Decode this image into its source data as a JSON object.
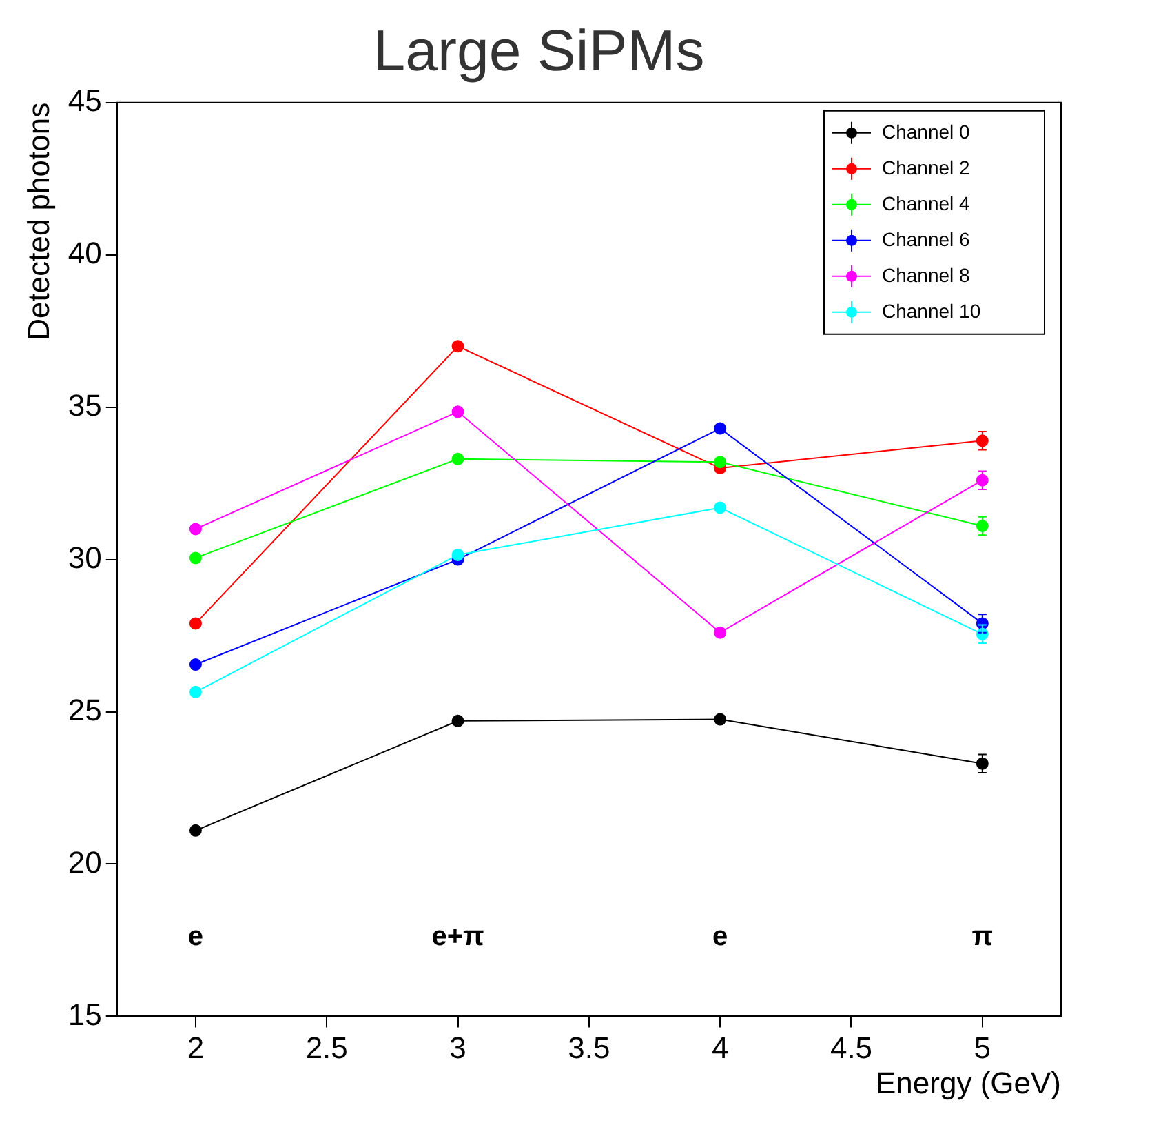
{
  "chart_data": {
    "type": "line",
    "title": "Large SiPMs",
    "xlabel": "Energy (GeV)",
    "ylabel": "Detected photons",
    "x": [
      2,
      3,
      4,
      5
    ],
    "series": [
      {
        "name": "Channel 0",
        "color": "#000000",
        "values": [
          21.1,
          24.7,
          24.75,
          23.3
        ],
        "errors": [
          null,
          null,
          null,
          0.3
        ]
      },
      {
        "name": "Channel 2",
        "color": "#ff0000",
        "values": [
          27.9,
          37.0,
          33.0,
          33.9
        ],
        "errors": [
          null,
          null,
          null,
          0.3
        ]
      },
      {
        "name": "Channel 4",
        "color": "#00ff00",
        "values": [
          30.05,
          33.3,
          33.2,
          31.1
        ],
        "errors": [
          null,
          null,
          null,
          0.3
        ]
      },
      {
        "name": "Channel 6",
        "color": "#0000ff",
        "values": [
          26.55,
          30.0,
          34.3,
          27.9
        ],
        "errors": [
          null,
          null,
          null,
          0.3
        ]
      },
      {
        "name": "Channel 8",
        "color": "#ff00ff",
        "values": [
          31.0,
          34.85,
          27.6,
          32.6
        ],
        "errors": [
          null,
          null,
          null,
          0.3
        ]
      },
      {
        "name": "Channel 10",
        "color": "#00ffff",
        "values": [
          25.65,
          30.15,
          31.7,
          27.55
        ],
        "errors": [
          null,
          null,
          null,
          0.3
        ]
      }
    ],
    "annotations": [
      "e",
      "e+π",
      "e",
      "π"
    ],
    "xlim": [
      1.7,
      5.3
    ],
    "xticks": [
      2,
      2.5,
      3,
      3.5,
      4,
      4.5,
      5
    ],
    "ylim": [
      15,
      45
    ],
    "yticks": [
      15,
      20,
      25,
      30,
      35,
      40,
      45
    ],
    "grid": false,
    "legend": "top right",
    "marker": "circle",
    "line_style": "solid"
  }
}
